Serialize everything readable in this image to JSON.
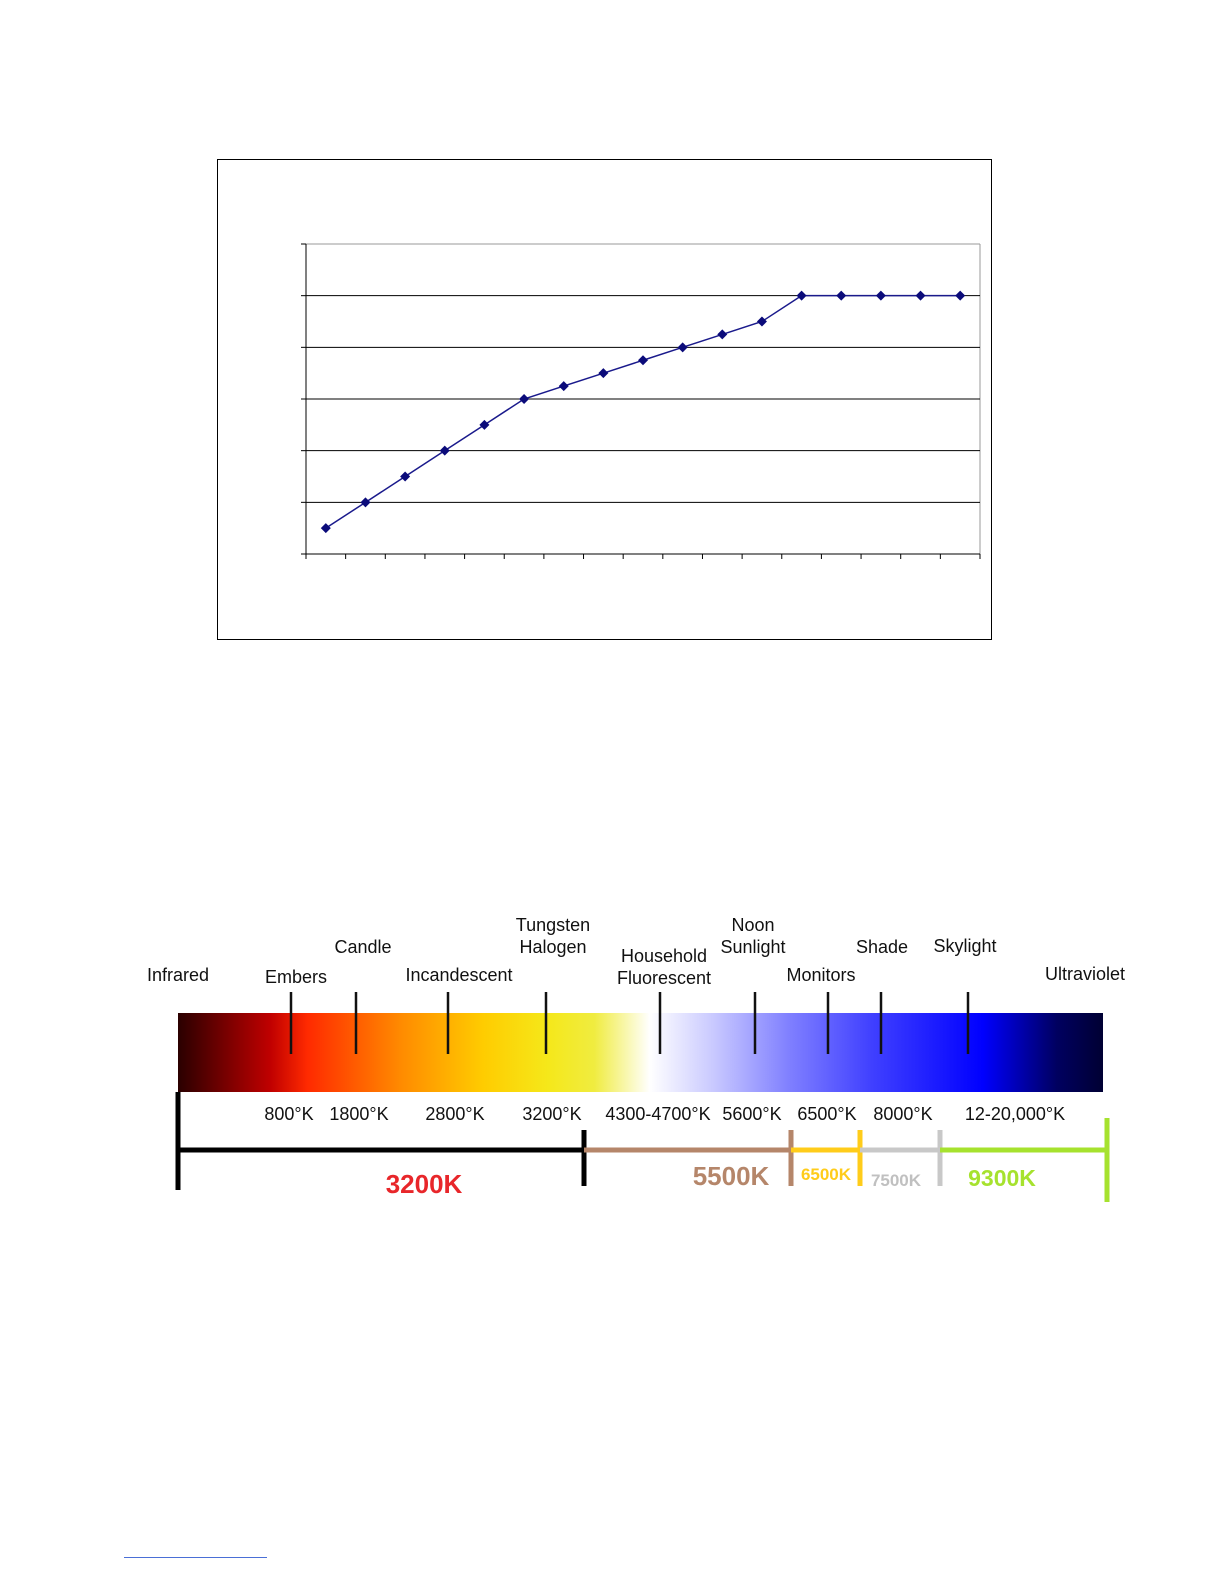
{
  "chart_data": {
    "type": "line",
    "title": "",
    "xlabel": "",
    "ylabel": "",
    "x": [
      1,
      2,
      3,
      4,
      5,
      6,
      7,
      8,
      9,
      10,
      11,
      12,
      13,
      14,
      15,
      16,
      17
    ],
    "series": [
      {
        "values": [
          0.5,
          1.0,
          1.5,
          2.0,
          2.5,
          3.0,
          3.25,
          3.5,
          3.75,
          4.0,
          4.25,
          4.5,
          5.0,
          5.0,
          5.0,
          5.0,
          5.0
        ]
      }
    ],
    "ylim": [
      0,
      6
    ],
    "xlim": [
      0.5,
      17.5
    ],
    "grid": true,
    "marker": "diamond",
    "colors": {
      "line": "#1a1a8c",
      "marker": "#0b0b7a",
      "grid": "#000000"
    }
  },
  "scale": {
    "light_sources": [
      {
        "lines": [
          "Infrared"
        ],
        "has_tick": false
      },
      {
        "lines": [
          "Embers"
        ],
        "has_tick": true
      },
      {
        "lines": [
          "Candle"
        ],
        "has_tick": true
      },
      {
        "lines": [
          "Incandescent"
        ],
        "has_tick": true
      },
      {
        "lines": [
          "Tungsten",
          "Halogen"
        ],
        "has_tick": true
      },
      {
        "lines": [
          "Household",
          "Fluorescent"
        ],
        "has_tick": true
      },
      {
        "lines": [
          "Noon",
          "Sunlight"
        ],
        "has_tick": true
      },
      {
        "lines": [
          "Monitors"
        ],
        "has_tick": true
      },
      {
        "lines": [
          "Shade"
        ],
        "has_tick": true
      },
      {
        "lines": [
          "Skylight"
        ],
        "has_tick": true
      },
      {
        "lines": [
          "Ultraviolet"
        ],
        "has_tick": false
      }
    ],
    "temperatures": [
      "800°K",
      "1800°K",
      "2800°K",
      "3200°K",
      "4300-4700°K",
      "5600°K",
      "6500°K",
      "8000°K",
      "12-20,000°K"
    ],
    "ranges": [
      {
        "label": "3200K",
        "bar_color": "#000000",
        "label_color": "#e8262a"
      },
      {
        "label": "5500K",
        "bar_color": "#b5866a",
        "label_color": "#b5866a"
      },
      {
        "label": "6500K",
        "bar_color": "#ffcc1a",
        "label_color": "#ffcc1a"
      },
      {
        "label": "7500K",
        "bar_color": "#c8c8c8",
        "label_color": "#c0c0c0"
      },
      {
        "label": "9300K",
        "bar_color": "#a6e22e",
        "label_color": "#a6e22e"
      }
    ],
    "gradient_colors": [
      "#2a0000",
      "#c00000",
      "#ff2a00",
      "#ff8a00",
      "#ffcc00",
      "#f5e81a",
      "#f0ec40",
      "#ffffff",
      "#c8c8ff",
      "#8080ff",
      "#4040ff",
      "#0000ff",
      "#000060",
      "#000033"
    ]
  }
}
